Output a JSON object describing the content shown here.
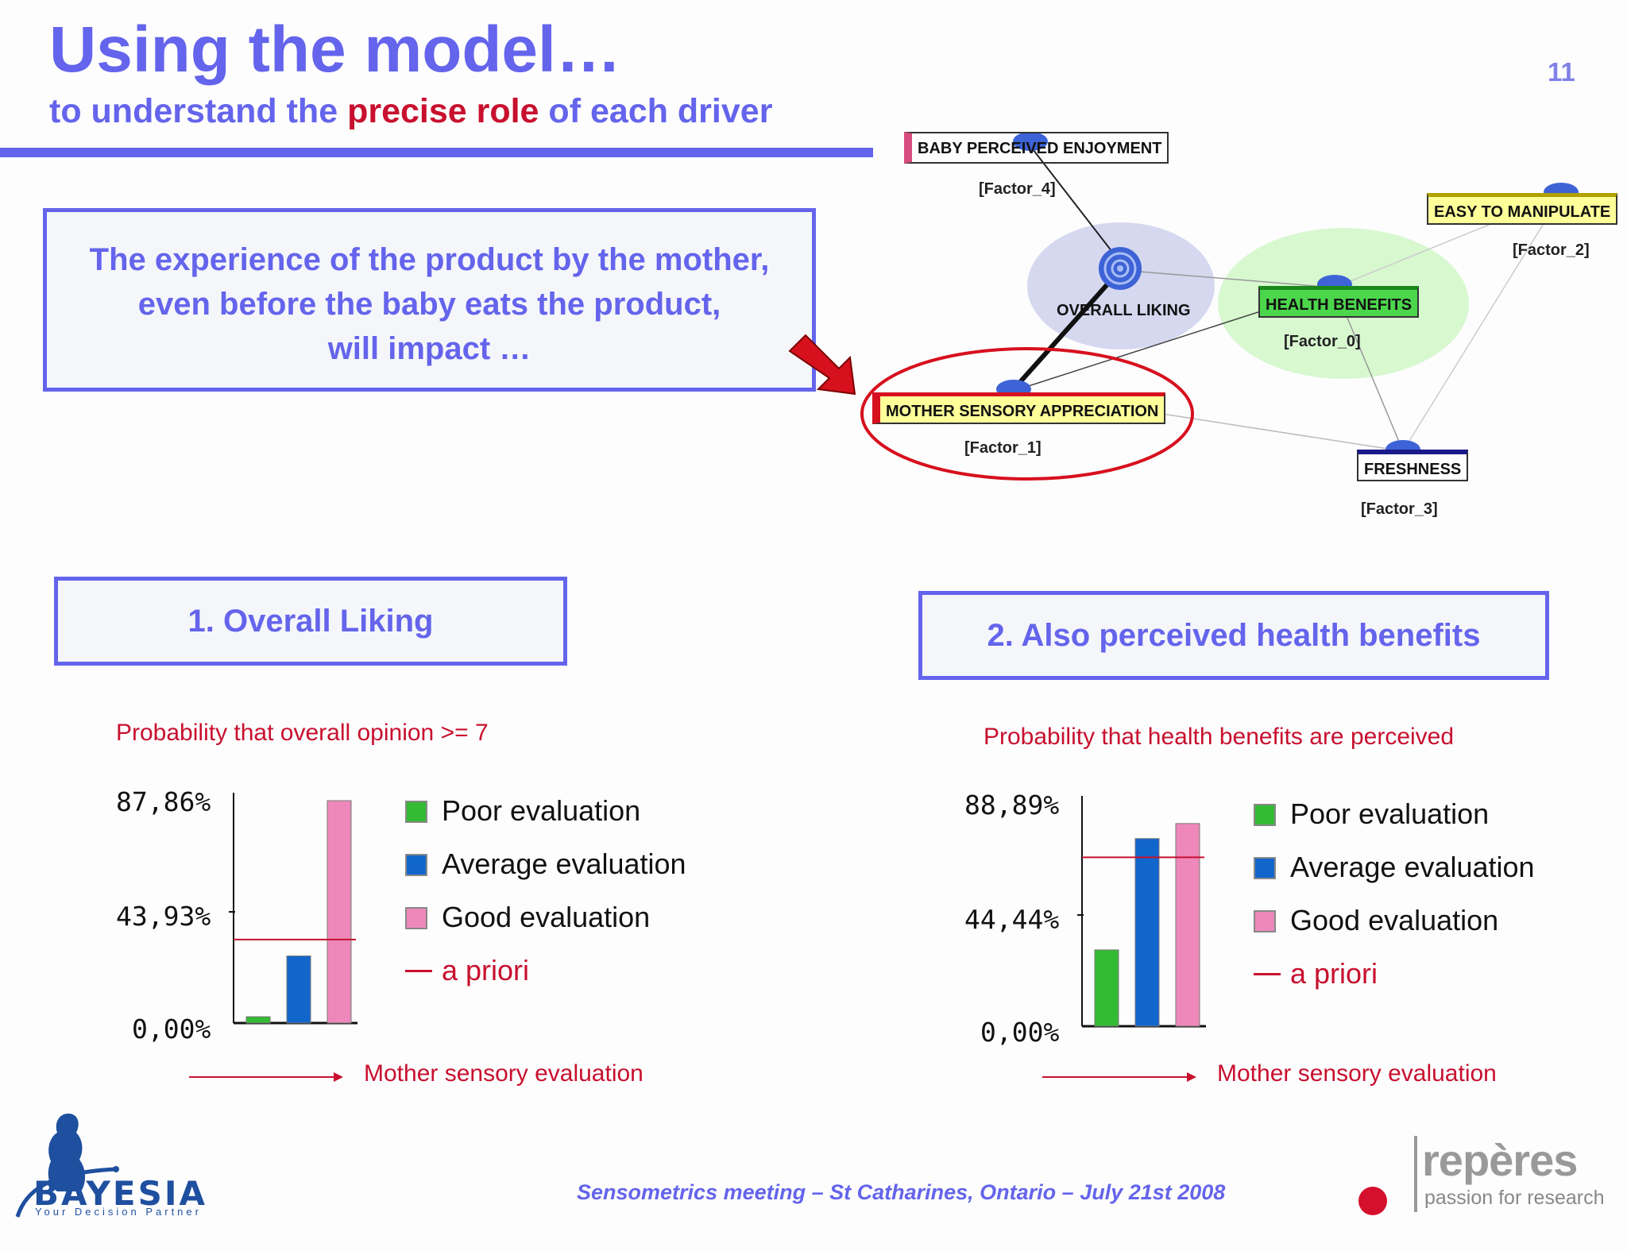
{
  "header": {
    "title": "Using the model…",
    "subtitle_pre": "to understand the ",
    "subtitle_highlight": "precise role",
    "subtitle_post": " of each driver",
    "slide_number": "11"
  },
  "experience_box": {
    "line1": "The experience of the product by the mother,",
    "line2": "even before the baby eats the product,",
    "line3": "will impact …"
  },
  "network": {
    "nodes": [
      {
        "label": "BABY PERCEIVED ENJOYMENT",
        "factor": "[Factor_4]"
      },
      {
        "label": "EASY TO MANIPULATE",
        "factor": "[Factor_2]"
      },
      {
        "label": "OVERALL LIKING"
      },
      {
        "label": "HEALTH BENEFITS",
        "factor": "[Factor_0]"
      },
      {
        "label": "MOTHER SENSORY APPRECIATION",
        "factor": "[Factor_1]"
      },
      {
        "label": "FRESHNESS",
        "factor": "[Factor_3]"
      }
    ],
    "colors": {
      "baby_enjoyment": "#ffd6e0",
      "easy_manipulate": "#ffff99",
      "health_benefits": "#4cd64c",
      "mother_sensory": "#ffff99",
      "freshness": "#ffffff",
      "highlight_ellipse": "#d7101e",
      "overall_cluster": "#d6d8f0",
      "health_cluster": "#d8f8d0"
    }
  },
  "sections": {
    "box1": "1. Overall Liking",
    "box2": "2. Also perceived health benefits"
  },
  "legend": {
    "poor": "Poor evaluation",
    "average": "Average evaluation",
    "good": "Good evaluation",
    "apriori": "a priori",
    "colors": {
      "poor": "#33bb33",
      "average": "#1166cc",
      "good": "#ee88bb",
      "apriori": "#c8102e"
    }
  },
  "chart_data": [
    {
      "type": "bar",
      "title": "Probability that overall opinion >= 7",
      "xlabel": "Mother sensory evaluation",
      "categories": [
        "Poor evaluation",
        "Average evaluation",
        "Good evaluation"
      ],
      "values": [
        2.5,
        26.5,
        87.86
      ],
      "apriori": 33.0,
      "ylim": [
        0,
        87.86
      ],
      "yticks": [
        "87,86%",
        "43,93%",
        "0,00%"
      ]
    },
    {
      "type": "bar",
      "title": "Probability that health benefits are perceived",
      "xlabel": "Mother sensory evaluation",
      "categories": [
        "Poor evaluation",
        "Average evaluation",
        "Good evaluation"
      ],
      "values": [
        30.5,
        75.0,
        81.0
      ],
      "apriori": 67.5,
      "ylim": [
        0,
        88.89
      ],
      "yticks": [
        "88,89%",
        "44,44%",
        "0,00%"
      ]
    }
  ],
  "footer": {
    "meeting": "Sensometrics meeting – St Catharines, Ontario – July 21st  2008",
    "bayesia_name": "BAYESIA",
    "bayesia_tagline": "Your Decision Partner",
    "reperes_name": "repères",
    "reperes_tagline": "passion for research"
  }
}
